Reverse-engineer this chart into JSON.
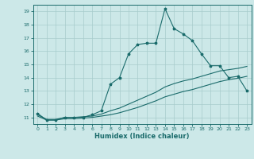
{
  "xlabel": "Humidex (Indice chaleur)",
  "background_color": "#cce8e8",
  "line_color": "#1a6b6b",
  "grid_color": "#a8cccc",
  "xlim": [
    -0.5,
    23.5
  ],
  "ylim": [
    10.5,
    19.5
  ],
  "yticks": [
    11,
    12,
    13,
    14,
    15,
    16,
    17,
    18,
    19
  ],
  "xticks": [
    0,
    1,
    2,
    3,
    4,
    5,
    6,
    7,
    8,
    9,
    10,
    11,
    12,
    13,
    14,
    15,
    16,
    17,
    18,
    19,
    20,
    21,
    22,
    23
  ],
  "series1_x": [
    0,
    1,
    2,
    3,
    4,
    5,
    6,
    7,
    8,
    9,
    10,
    11,
    12,
    13,
    14,
    15,
    16,
    17,
    18,
    19,
    20,
    21,
    22,
    23
  ],
  "series1_y": [
    11.3,
    10.8,
    10.8,
    11.0,
    11.0,
    11.0,
    11.2,
    11.5,
    13.5,
    14.0,
    15.8,
    16.5,
    16.6,
    16.6,
    19.2,
    17.7,
    17.3,
    16.8,
    15.8,
    14.9,
    14.9,
    14.0,
    14.1,
    13.0
  ],
  "series2_x": [
    0,
    1,
    2,
    3,
    4,
    5,
    6,
    7,
    8,
    9,
    10,
    11,
    12,
    13,
    14,
    15,
    16,
    17,
    18,
    19,
    20,
    21,
    22,
    23
  ],
  "series2_y": [
    11.1,
    10.8,
    10.8,
    10.9,
    10.9,
    10.95,
    11.0,
    11.1,
    11.2,
    11.35,
    11.55,
    11.75,
    12.0,
    12.25,
    12.55,
    12.75,
    12.95,
    13.1,
    13.3,
    13.5,
    13.7,
    13.85,
    13.95,
    14.1
  ],
  "series3_x": [
    0,
    1,
    2,
    3,
    4,
    5,
    6,
    7,
    8,
    9,
    10,
    11,
    12,
    13,
    14,
    15,
    16,
    17,
    18,
    19,
    20,
    21,
    22,
    23
  ],
  "series3_y": [
    11.2,
    10.85,
    10.85,
    11.0,
    11.0,
    11.05,
    11.1,
    11.25,
    11.5,
    11.7,
    12.0,
    12.3,
    12.6,
    12.9,
    13.3,
    13.55,
    13.75,
    13.9,
    14.1,
    14.3,
    14.5,
    14.6,
    14.7,
    14.85
  ]
}
